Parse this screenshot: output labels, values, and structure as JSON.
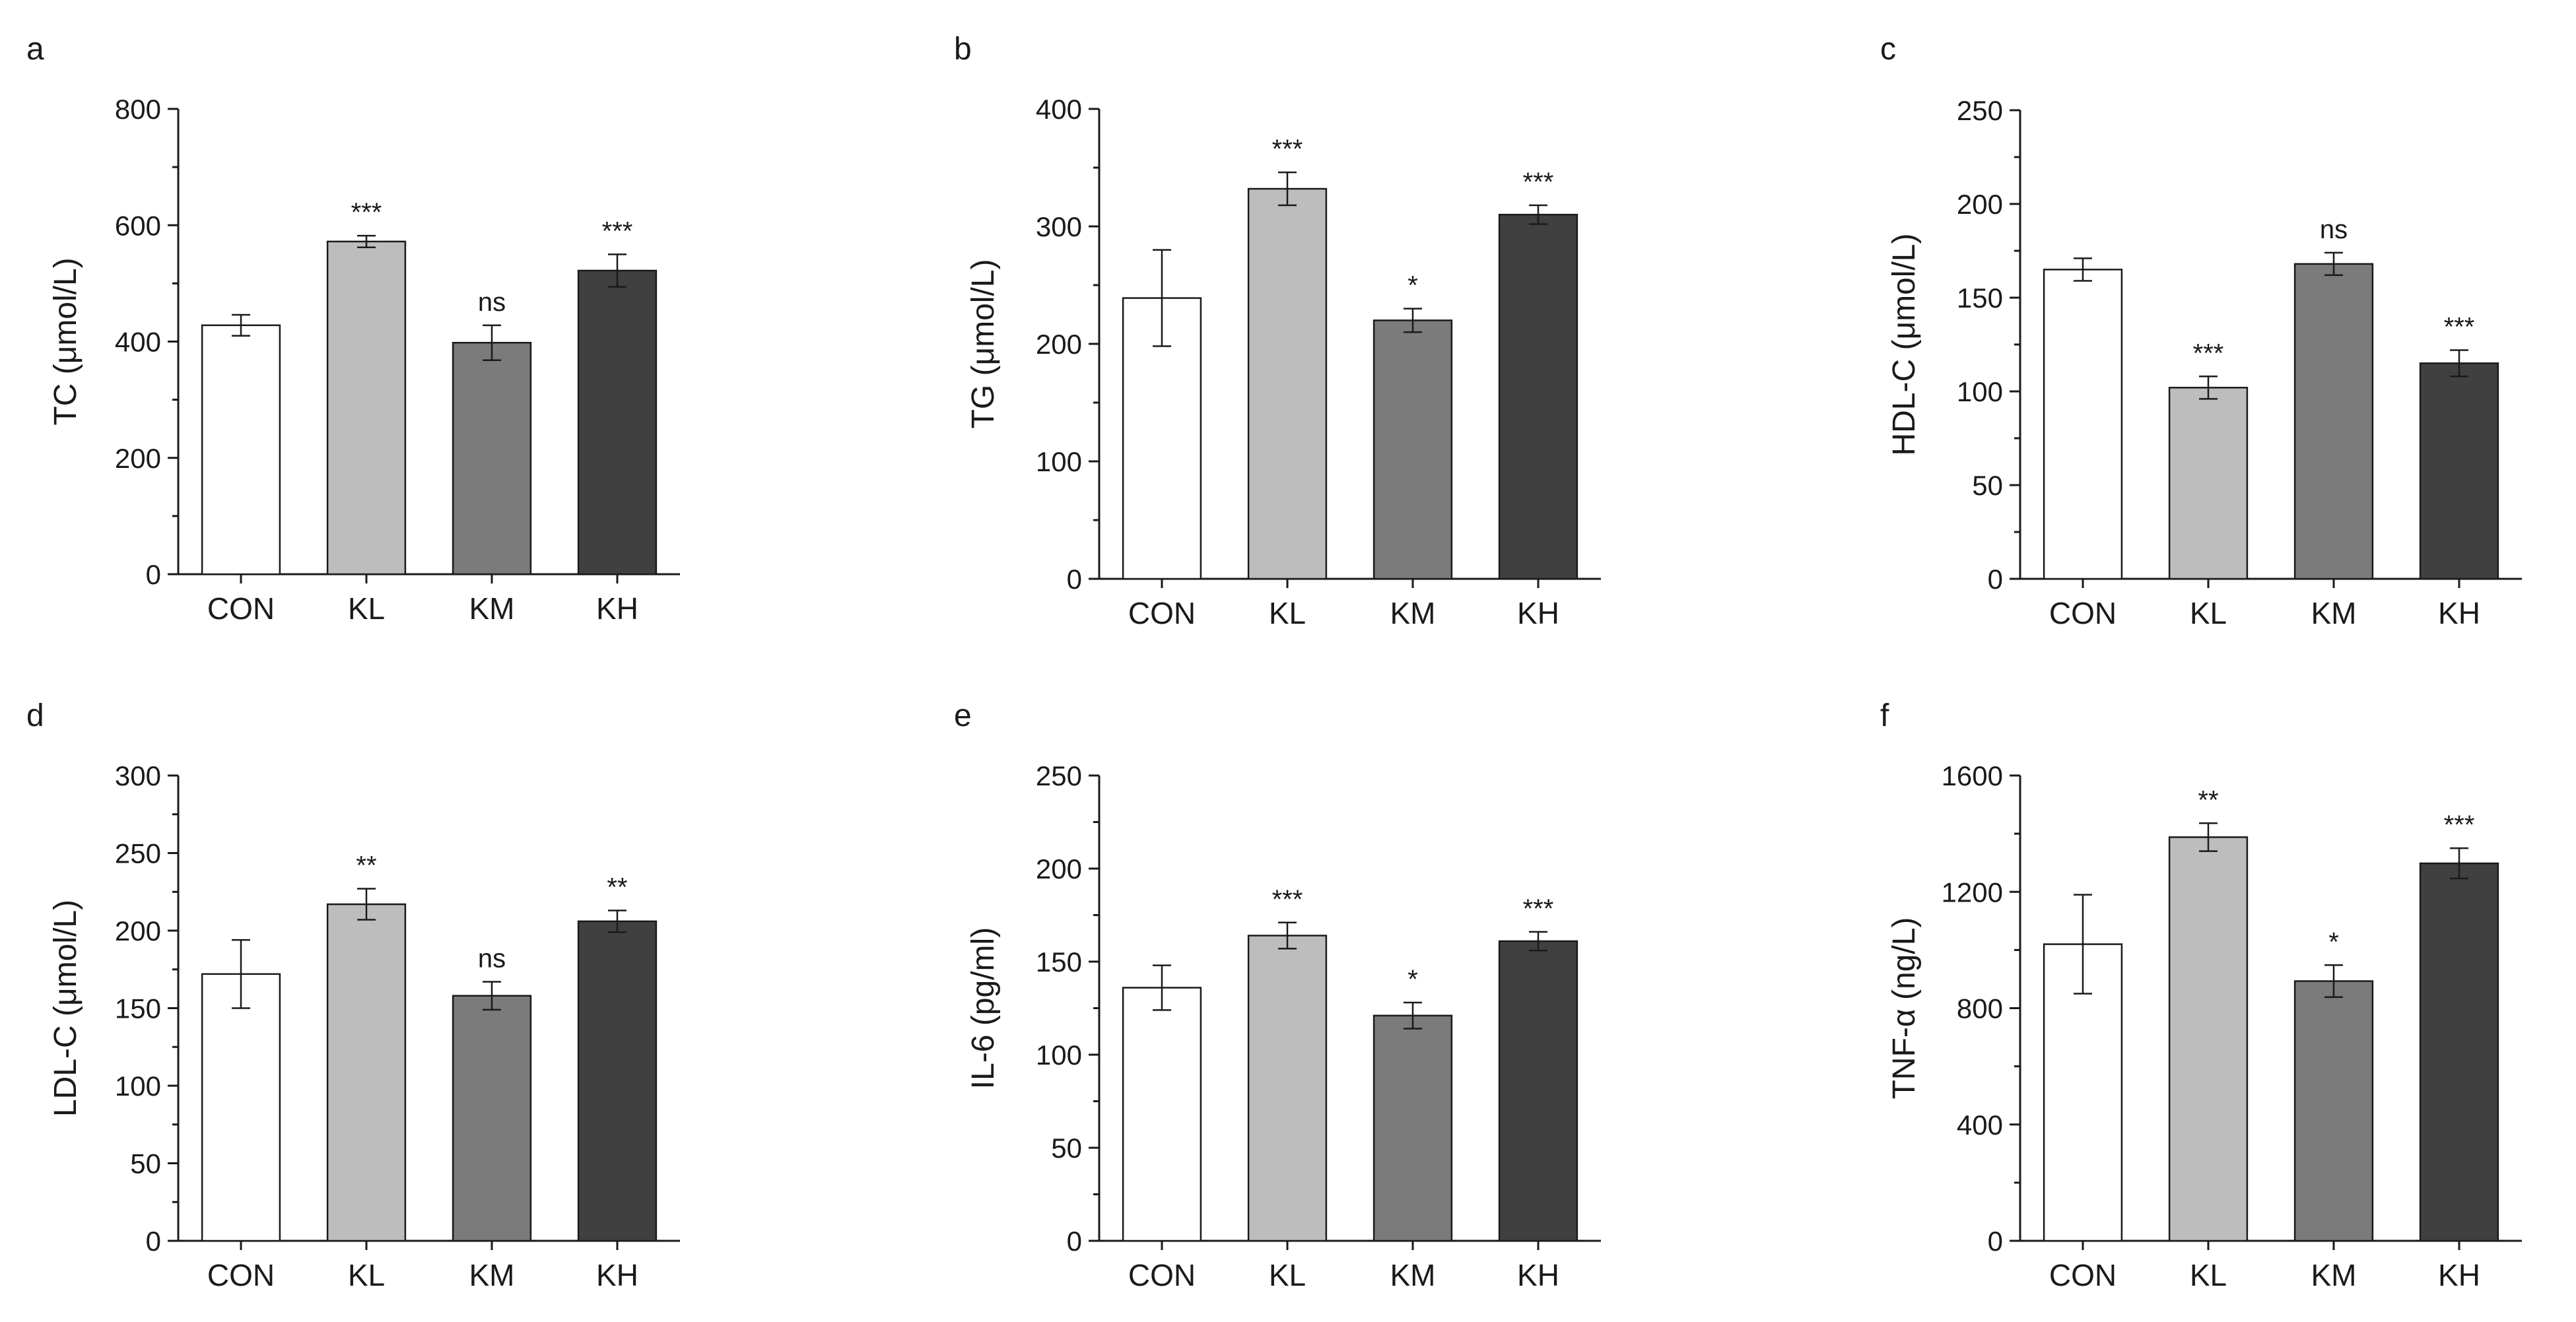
{
  "chart_data": [
    {
      "type": "bar",
      "panel": "a",
      "categories": [
        "CON",
        "KL",
        "KM",
        "KH"
      ],
      "values": [
        428,
        572,
        398,
        522
      ],
      "errors": [
        18,
        10,
        30,
        28
      ],
      "significance": [
        "",
        "***",
        "ns",
        "***"
      ],
      "ylabel": "TC (μmol/L)",
      "ylim": [
        0,
        800
      ],
      "yticks": [
        0,
        200,
        400,
        600,
        800
      ],
      "ytick_labels": [
        "0",
        "200",
        "400",
        "600",
        "800"
      ]
    },
    {
      "type": "bar",
      "panel": "b",
      "categories": [
        "CON",
        "KL",
        "KM",
        "KH"
      ],
      "values": [
        239,
        332,
        220,
        310
      ],
      "errors": [
        41,
        14,
        10,
        8
      ],
      "significance": [
        "",
        "***",
        "*",
        "***"
      ],
      "ylabel": "TG (μmol/L)",
      "ylim": [
        0,
        400
      ],
      "yticks": [
        0,
        100,
        200,
        300,
        400
      ],
      "ytick_labels": [
        "0",
        "100",
        "200",
        "300",
        "400"
      ]
    },
    {
      "type": "bar",
      "panel": "c",
      "categories": [
        "CON",
        "KL",
        "KM",
        "KH"
      ],
      "values": [
        165,
        102,
        168,
        115
      ],
      "errors": [
        6,
        6,
        6,
        7
      ],
      "significance": [
        "",
        "***",
        "ns",
        "***"
      ],
      "ylabel": "HDL-C (μmol/L)",
      "ylim": [
        0,
        250
      ],
      "yticks": [
        0,
        50,
        100,
        150,
        200,
        250
      ],
      "ytick_labels": [
        "0",
        "50",
        "100",
        "150",
        "200",
        "250"
      ]
    },
    {
      "type": "bar",
      "panel": "d",
      "categories": [
        "CON",
        "KL",
        "KM",
        "KH"
      ],
      "values": [
        172,
        217,
        158,
        206
      ],
      "errors": [
        22,
        10,
        9,
        7
      ],
      "significance": [
        "",
        "**",
        "ns",
        "**"
      ],
      "ylabel": "LDL-C (μmol/L)",
      "ylim": [
        0,
        300
      ],
      "yticks": [
        0,
        50,
        100,
        150,
        200,
        250,
        300
      ],
      "ytick_labels": [
        "0",
        "50",
        "100",
        "150",
        "200",
        "250",
        "300"
      ]
    },
    {
      "type": "bar",
      "panel": "e",
      "categories": [
        "CON",
        "KL",
        "KM",
        "KH"
      ],
      "values": [
        136,
        164,
        121,
        161
      ],
      "errors": [
        12,
        7,
        7,
        5
      ],
      "significance": [
        "",
        "***",
        "*",
        "***"
      ],
      "ylabel": "IL-6 (pg/ml)",
      "ylim": [
        0,
        250
      ],
      "yticks": [
        0,
        50,
        100,
        150,
        200,
        250
      ],
      "ytick_labels": [
        "0",
        "50",
        "100",
        "150",
        "200",
        "250"
      ]
    },
    {
      "type": "bar",
      "panel": "f",
      "categories": [
        "CON",
        "KL",
        "KM",
        "KH"
      ],
      "values": [
        1020,
        1388,
        893,
        1298
      ],
      "errors": [
        170,
        48,
        55,
        52
      ],
      "significance": [
        "",
        "**",
        "*",
        "***"
      ],
      "ylabel": "TNF-α (ng/L)",
      "ylim": [
        0,
        1600
      ],
      "yticks": [
        0,
        400,
        800,
        1200,
        1600
      ],
      "ytick_labels": [
        "0",
        "400",
        "800",
        "1200",
        "1600"
      ]
    }
  ],
  "colors": {
    "bars": [
      "#ffffff",
      "#bdbdbd",
      "#7b7b7b",
      "#404040"
    ],
    "axis": "#1a1a1a"
  }
}
